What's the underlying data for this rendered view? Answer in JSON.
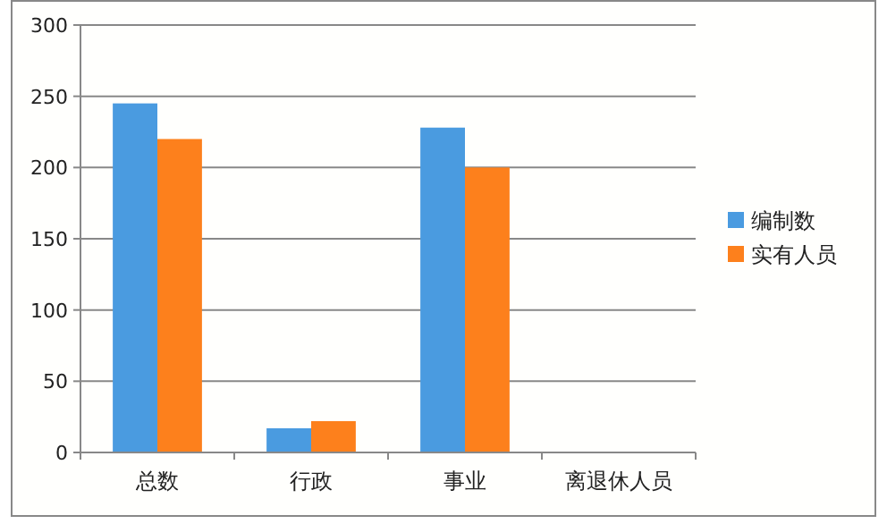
{
  "chart_data": {
    "type": "bar",
    "categories": [
      "总数",
      "行政",
      "事业",
      "离退休人员"
    ],
    "series": [
      {
        "name": "编制数",
        "color": "#4a9be0",
        "values": [
          245,
          17,
          228,
          0
        ]
      },
      {
        "name": "实有人员",
        "color": "#fd801c",
        "values": [
          220,
          22,
          200,
          0
        ]
      }
    ],
    "ylim": [
      0,
      300
    ],
    "yticks": [
      0,
      50,
      100,
      150,
      200,
      250,
      300
    ],
    "grid": "y",
    "legend": "right"
  }
}
